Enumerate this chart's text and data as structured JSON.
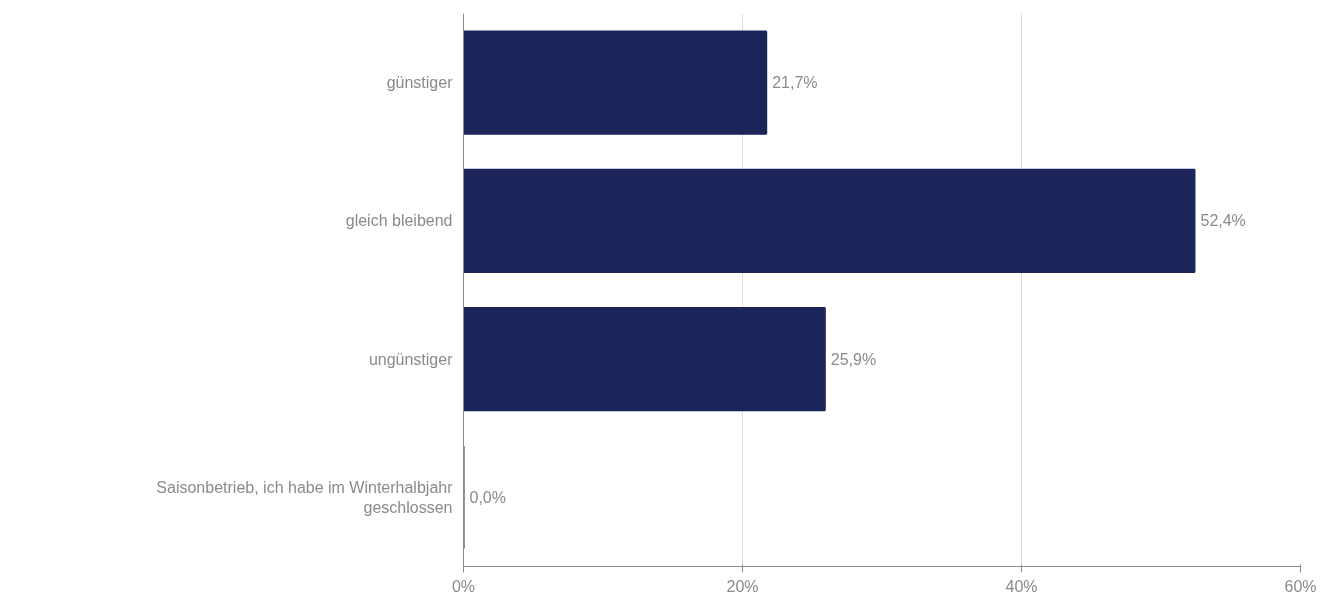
{
  "chart_data": {
    "type": "bar",
    "orientation": "horizontal",
    "categories": [
      "günstiger",
      "gleich bleibend",
      "ungünstiger",
      "Saisonbetrieb, ich habe im Winterhalbjahr geschlossen"
    ],
    "values": [
      21.7,
      52.4,
      25.9,
      0.0
    ],
    "value_labels": [
      "21,7%",
      "52,4%",
      "25,9%",
      "0,0%"
    ],
    "color": "#1b2559",
    "xlim": [
      0,
      60
    ],
    "xticks": [
      {
        "value": 0,
        "label": "0%"
      },
      {
        "value": 20,
        "label": "20%"
      },
      {
        "value": 40,
        "label": "40%"
      },
      {
        "value": 60,
        "label": "60%"
      }
    ],
    "grid": "x"
  }
}
